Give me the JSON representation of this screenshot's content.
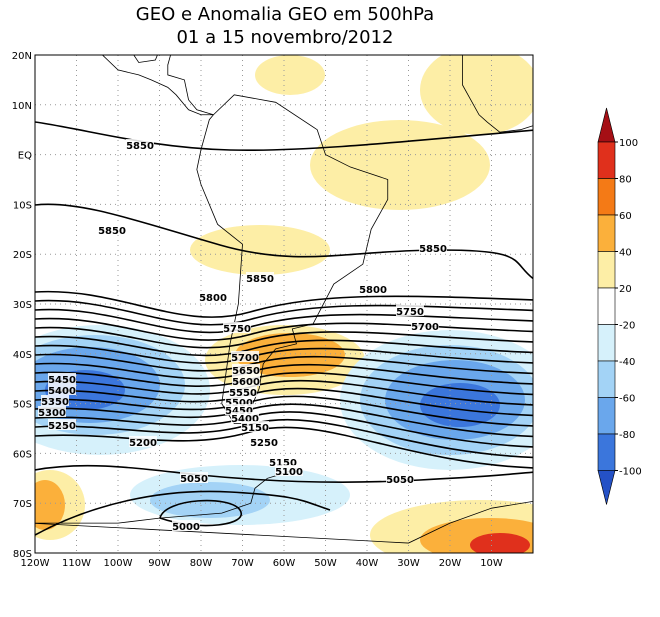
{
  "title": [
    "GEO e Anomalia GEO em 500hPa",
    "01 a 15 novembro/2012"
  ],
  "map": {
    "lat_labels": [
      "20N",
      "10N",
      "EQ",
      "10S",
      "20S",
      "30S",
      "40S",
      "50S",
      "60S",
      "70S",
      "80S"
    ],
    "lon_labels": [
      "120W",
      "110W",
      "100W",
      "90W",
      "80W",
      "70W",
      "60W",
      "50W",
      "40W",
      "30W",
      "20W",
      "10W"
    ],
    "contour_labels": [
      5850,
      5850,
      5850,
      5850,
      5800,
      5800,
      5750,
      5700,
      5750,
      5700,
      5650,
      5600,
      5550,
      5500,
      5450,
      5400,
      5450,
      5400,
      5350,
      5300,
      5250,
      5200,
      5150,
      5250,
      5150,
      5100,
      5050,
      5050,
      5000
    ]
  },
  "colorbar": {
    "ticks": [
      100,
      80,
      60,
      40,
      20,
      -20,
      -40,
      -60,
      -80,
      -100
    ],
    "colors": [
      "#a50f15",
      "#e0301c",
      "#f47a16",
      "#fbb03b",
      "#fdeea6",
      "#ffffff",
      "#d6f1fb",
      "#a3d3f6",
      "#6aa7ec",
      "#3b76dc",
      "#2451c6"
    ]
  }
}
